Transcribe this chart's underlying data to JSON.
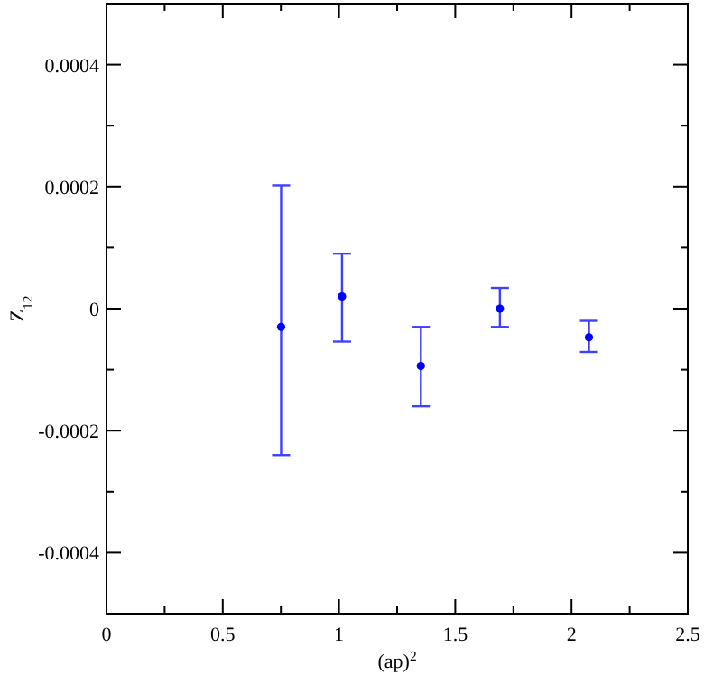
{
  "chart_data": {
    "type": "scatter",
    "xlabel": "(ap)$^{2}$",
    "ylabel": "Z$_{12}$",
    "xlim": [
      0,
      2.5
    ],
    "ylim": [
      -0.0005,
      0.0005
    ],
    "xticks": [
      0,
      {
        "value": 0.25,
        "label": null
      },
      0.5,
      {
        "value": 0.75,
        "label": null
      },
      1,
      {
        "value": 1.25,
        "label": null
      },
      1.5,
      {
        "value": 1.75,
        "label": null
      },
      2,
      {
        "value": 2.25,
        "label": null
      },
      2.5
    ],
    "yticks": [
      {
        "value": -0.0005,
        "label": null
      },
      -0.0004,
      {
        "value": -0.0003,
        "label": null
      },
      -0.0002,
      {
        "value": -0.0001,
        "label": null
      },
      0,
      {
        "value": 0.0001,
        "label": null
      },
      0.0002,
      {
        "value": 0.0003,
        "label": null
      },
      0.0004,
      {
        "value": 0.0005,
        "label": null
      }
    ],
    "grid": false,
    "marker": "circle",
    "series": [
      {
        "color": "#0000ff",
        "x": [
          0.751,
          1.013,
          1.352,
          1.692,
          2.075
        ],
        "values": [
          -3e-05,
          2e-05,
          -9.4e-05,
          0,
          -4.7e-05
        ],
        "errors": [
          [
            -0.00024,
            0.000202
          ],
          [
            -5.4e-05,
            9e-05
          ],
          [
            -0.00016,
            -3e-05
          ],
          [
            -3e-05,
            3.4e-05
          ],
          [
            -7.1e-05,
            -2e-05
          ]
        ]
      }
    ]
  }
}
